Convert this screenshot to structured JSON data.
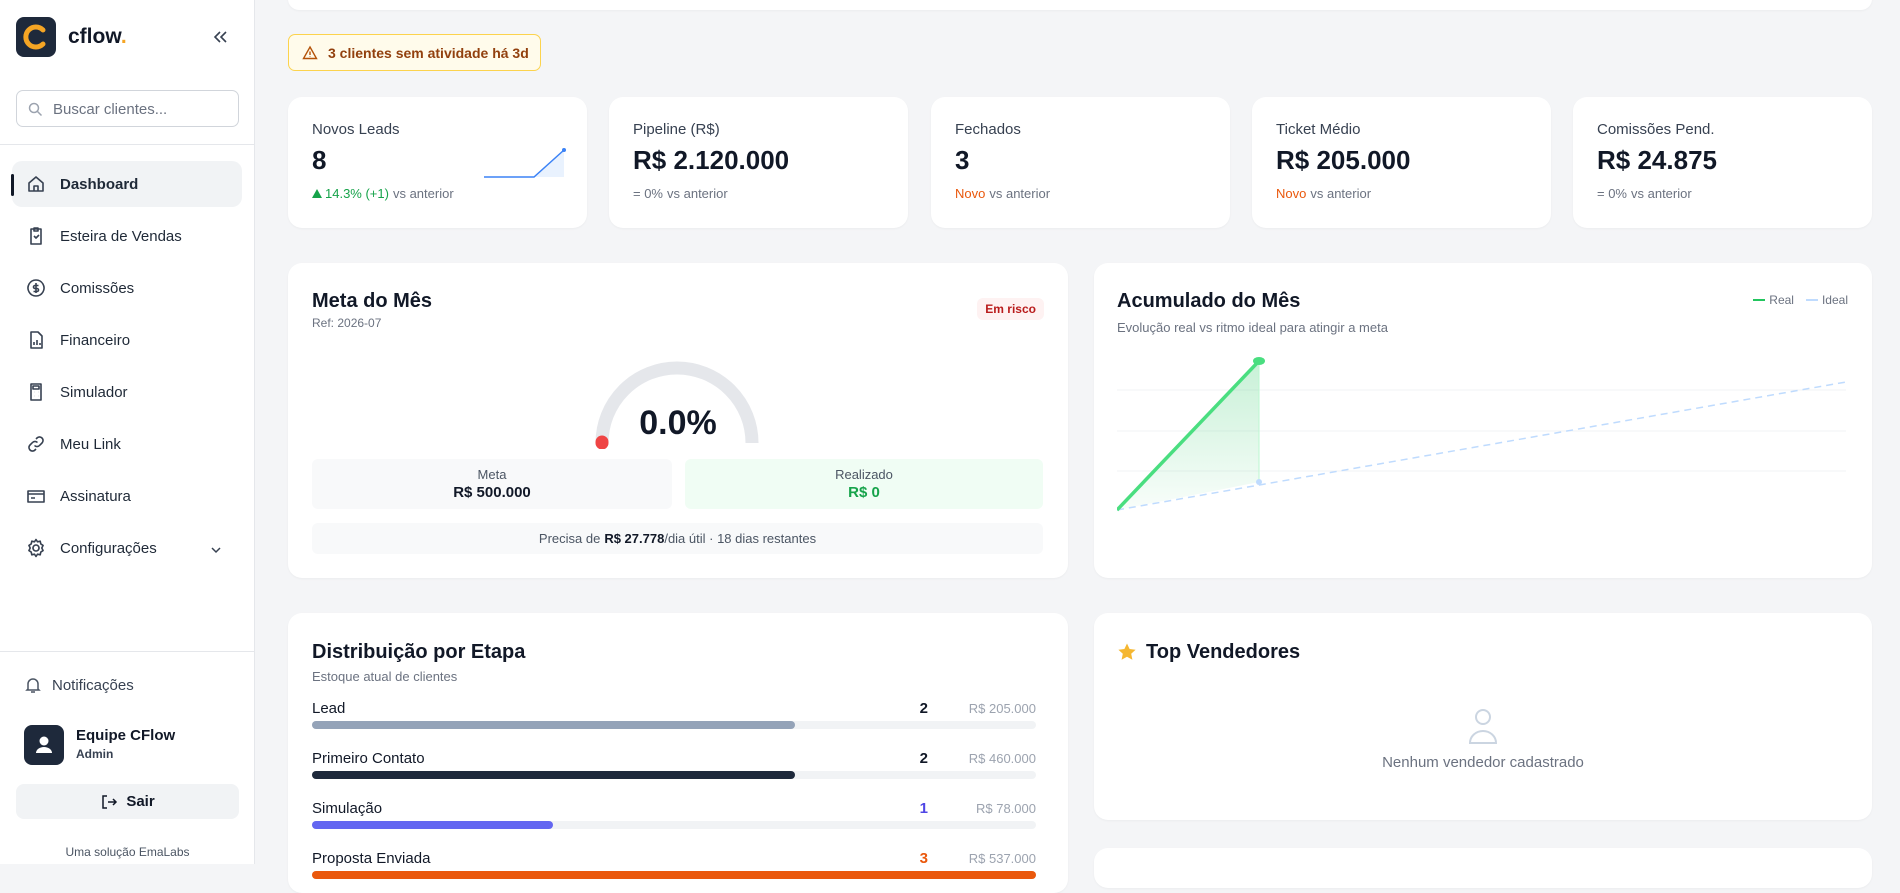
{
  "sidebar": {
    "brand": "cflow",
    "brand_dot": ".",
    "search_placeholder": "Buscar clientes...",
    "nav": [
      "Dashboard",
      "Esteira de Vendas",
      "Comissões",
      "Financeiro",
      "Simulador",
      "Meu Link",
      "Assinatura",
      "Configurações"
    ],
    "notifications": "Notificações",
    "user": {
      "name": "Equipe CFlow",
      "role": "Admin"
    },
    "logout": "Sair",
    "footer": "Uma solução EmaLabs"
  },
  "alert": "3 clientes sem atividade há 3d",
  "kpis": [
    {
      "label": "Novos Leads",
      "value": "8",
      "change": "14.3% (+1)",
      "change_color": "#16a34a",
      "suffix": "vs anterior"
    },
    {
      "label": "Pipeline (R$)",
      "value": "R$ 2.120.000",
      "change": "= 0%",
      "change_color": "#6b7280",
      "suffix": "vs anterior"
    },
    {
      "label": "Fechados",
      "value": "3",
      "change": "Novo",
      "change_color": "#ea580c",
      "suffix": "vs anterior"
    },
    {
      "label": "Ticket Médio",
      "value": "R$ 205.000",
      "change": "Novo",
      "change_color": "#ea580c",
      "suffix": "vs anterior"
    },
    {
      "label": "Comissões Pend.",
      "value": "R$ 24.875",
      "change": "= 0%",
      "change_color": "#6b7280",
      "suffix": "vs anterior"
    }
  ],
  "goal": {
    "title": "Meta do Mês",
    "ref": "Ref: 2026-07",
    "status": "Em risco",
    "percent": "0.0%",
    "target_label": "Meta",
    "target": "R$ 500.000",
    "achieved_label": "Realizado",
    "achieved": "R$ 0",
    "note_prefix": "Precisa de",
    "note_amount": "R$ 27.778",
    "note_suffix": "/dia útil · 18 dias restantes"
  },
  "accumulated": {
    "title": "Acumulado do Mês",
    "subtitle": "Evolução real vs ritmo ideal para atingir a meta",
    "legend": [
      "Real",
      "Ideal"
    ]
  },
  "distribution": {
    "title": "Distribuição por Etapa",
    "subtitle": "Estoque atual de clientes",
    "stages": [
      {
        "name": "Lead",
        "count": 2,
        "value": "R$ 205.000",
        "color": "#94a3b8",
        "count_color": "#111827"
      },
      {
        "name": "Primeiro Contato",
        "count": 2,
        "value": "R$ 460.000",
        "color": "#1e293b",
        "count_color": "#111827"
      },
      {
        "name": "Simulação",
        "count": 1,
        "value": "R$ 78.000",
        "color": "#6366f1",
        "count_color": "#4f46e5"
      },
      {
        "name": "Proposta Enviada",
        "count": 3,
        "value": "R$ 537.000",
        "color": "#ea580c",
        "count_color": "#ea580c"
      }
    ]
  },
  "top_sellers": {
    "title": "Top Vendedores",
    "empty": "Nenhum vendedor cadastrado"
  }
}
